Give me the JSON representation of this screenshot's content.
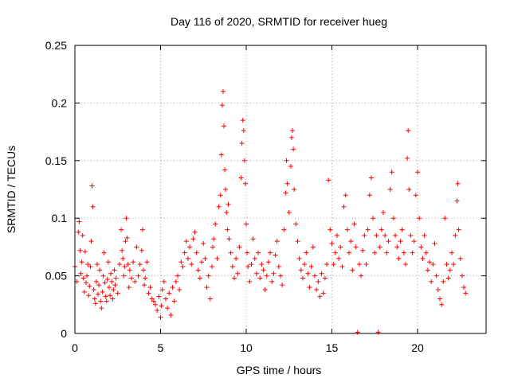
{
  "chart_data": {
    "type": "scatter",
    "title": "Day 116 of 2020, SRMTID for receiver hueg",
    "xlabel": "GPS time / hours",
    "ylabel": "SRMTID / TECUs",
    "xlim": [
      0,
      24
    ],
    "ylim": [
      0,
      0.25
    ],
    "x_ticks": [
      0,
      5,
      10,
      15,
      20
    ],
    "x_tick_labels": [
      "0",
      "5",
      "10",
      "15",
      "20"
    ],
    "y_ticks": [
      0,
      0.05,
      0.1,
      0.15,
      0.2,
      0.25
    ],
    "y_tick_labels": [
      "0",
      "0.05",
      "0.1",
      "0.15",
      "0.2",
      "0.25"
    ],
    "grid": true,
    "marker": "+",
    "color": "#ff0000",
    "series": [
      {
        "name": "SRMTID",
        "points": [
          [
            0.0,
            0.058
          ],
          [
            0.1,
            0.045
          ],
          [
            0.2,
            0.088
          ],
          [
            0.25,
            0.097
          ],
          [
            0.3,
            0.072
          ],
          [
            0.35,
            0.052
          ],
          [
            0.4,
            0.062
          ],
          [
            0.45,
            0.085
          ],
          [
            0.5,
            0.048
          ],
          [
            0.55,
            0.036
          ],
          [
            0.6,
            0.071
          ],
          [
            0.65,
            0.044
          ],
          [
            0.7,
            0.05
          ],
          [
            0.75,
            0.06
          ],
          [
            0.8,
            0.033
          ],
          [
            0.85,
            0.041
          ],
          [
            0.9,
            0.058
          ],
          [
            0.95,
            0.08
          ],
          [
            1.0,
            0.128
          ],
          [
            1.05,
            0.11
          ],
          [
            1.1,
            0.038
          ],
          [
            1.15,
            0.03
          ],
          [
            1.2,
            0.026
          ],
          [
            1.25,
            0.045
          ],
          [
            1.3,
            0.06
          ],
          [
            1.35,
            0.034
          ],
          [
            1.4,
            0.042
          ],
          [
            1.45,
            0.055
          ],
          [
            1.5,
            0.028
          ],
          [
            1.55,
            0.022
          ],
          [
            1.6,
            0.036
          ],
          [
            1.65,
            0.05
          ],
          [
            1.7,
            0.07
          ],
          [
            1.75,
            0.044
          ],
          [
            1.8,
            0.032
          ],
          [
            1.85,
            0.028
          ],
          [
            1.9,
            0.047
          ],
          [
            1.95,
            0.062
          ],
          [
            2.0,
            0.04
          ],
          [
            2.05,
            0.033
          ],
          [
            2.1,
            0.052
          ],
          [
            2.15,
            0.045
          ],
          [
            2.2,
            0.03
          ],
          [
            2.25,
            0.038
          ],
          [
            2.3,
            0.055
          ],
          [
            2.35,
            0.042
          ],
          [
            2.4,
            0.048
          ],
          [
            2.5,
            0.035
          ],
          [
            2.6,
            0.06
          ],
          [
            2.7,
            0.09
          ],
          [
            2.75,
            0.072
          ],
          [
            2.8,
            0.065
          ],
          [
            2.85,
            0.05
          ],
          [
            2.9,
            0.058
          ],
          [
            2.95,
            0.08
          ],
          [
            3.0,
            0.1
          ],
          [
            3.05,
            0.083
          ],
          [
            3.1,
            0.06
          ],
          [
            3.15,
            0.04
          ],
          [
            3.2,
            0.055
          ],
          [
            3.3,
            0.048
          ],
          [
            3.4,
            0.062
          ],
          [
            3.5,
            0.045
          ],
          [
            3.6,
            0.075
          ],
          [
            3.7,
            0.05
          ],
          [
            3.8,
            0.06
          ],
          [
            3.9,
            0.072
          ],
          [
            3.95,
            0.09
          ],
          [
            4.0,
            0.055
          ],
          [
            4.05,
            0.042
          ],
          [
            4.1,
            0.048
          ],
          [
            4.2,
            0.062
          ],
          [
            4.3,
            0.035
          ],
          [
            4.4,
            0.04
          ],
          [
            4.5,
            0.03
          ],
          [
            4.6,
            0.028
          ],
          [
            4.7,
            0.025
          ],
          [
            4.8,
            0.02
          ],
          [
            4.9,
            0.032
          ],
          [
            5.0,
            0.014
          ],
          [
            5.05,
            0.024
          ],
          [
            5.1,
            0.038
          ],
          [
            5.2,
            0.045
          ],
          [
            5.3,
            0.03
          ],
          [
            5.4,
            0.022
          ],
          [
            5.5,
            0.035
          ],
          [
            5.6,
            0.016
          ],
          [
            5.7,
            0.04
          ],
          [
            5.8,
            0.028
          ],
          [
            5.9,
            0.045
          ],
          [
            6.0,
            0.05
          ],
          [
            6.1,
            0.038
          ],
          [
            6.2,
            0.062
          ],
          [
            6.3,
            0.058
          ],
          [
            6.4,
            0.07
          ],
          [
            6.5,
            0.08
          ],
          [
            6.6,
            0.065
          ],
          [
            6.7,
            0.075
          ],
          [
            6.8,
            0.06
          ],
          [
            6.9,
            0.082
          ],
          [
            7.0,
            0.088
          ],
          [
            7.1,
            0.07
          ],
          [
            7.2,
            0.055
          ],
          [
            7.3,
            0.048
          ],
          [
            7.4,
            0.062
          ],
          [
            7.5,
            0.078
          ],
          [
            7.6,
            0.065
          ],
          [
            7.7,
            0.04
          ],
          [
            7.8,
            0.05
          ],
          [
            7.9,
            0.03
          ],
          [
            8.0,
            0.058
          ],
          [
            8.05,
            0.075
          ],
          [
            8.1,
            0.082
          ],
          [
            8.2,
            0.095
          ],
          [
            8.3,
            0.065
          ],
          [
            8.4,
            0.11
          ],
          [
            8.5,
            0.12
          ],
          [
            8.55,
            0.155
          ],
          [
            8.6,
            0.198
          ],
          [
            8.65,
            0.21
          ],
          [
            8.7,
            0.18
          ],
          [
            8.75,
            0.142
          ],
          [
            8.8,
            0.125
          ],
          [
            8.85,
            0.105
          ],
          [
            8.9,
            0.09
          ],
          [
            8.95,
            0.112
          ],
          [
            9.0,
            0.082
          ],
          [
            9.1,
            0.07
          ],
          [
            9.2,
            0.058
          ],
          [
            9.3,
            0.048
          ],
          [
            9.4,
            0.065
          ],
          [
            9.5,
            0.052
          ],
          [
            9.6,
            0.075
          ],
          [
            9.7,
            0.135
          ],
          [
            9.75,
            0.165
          ],
          [
            9.8,
            0.185
          ],
          [
            9.85,
            0.176
          ],
          [
            9.9,
            0.15
          ],
          [
            9.95,
            0.13
          ],
          [
            10.0,
            0.095
          ],
          [
            10.05,
            0.07
          ],
          [
            10.1,
            0.058
          ],
          [
            10.2,
            0.045
          ],
          [
            10.3,
            0.06
          ],
          [
            10.4,
            0.082
          ],
          [
            10.5,
            0.065
          ],
          [
            10.6,
            0.052
          ],
          [
            10.7,
            0.07
          ],
          [
            10.8,
            0.048
          ],
          [
            10.9,
            0.06
          ],
          [
            11.0,
            0.055
          ],
          [
            11.1,
            0.038
          ],
          [
            11.2,
            0.05
          ],
          [
            11.3,
            0.062
          ],
          [
            11.4,
            0.07
          ],
          [
            11.5,
            0.045
          ],
          [
            11.6,
            0.052
          ],
          [
            11.7,
            0.068
          ],
          [
            11.8,
            0.08
          ],
          [
            11.9,
            0.058
          ],
          [
            12.0,
            0.05
          ],
          [
            12.1,
            0.042
          ],
          [
            12.2,
            0.09
          ],
          [
            12.3,
            0.122
          ],
          [
            12.35,
            0.15
          ],
          [
            12.4,
            0.13
          ],
          [
            12.5,
            0.105
          ],
          [
            12.6,
            0.145
          ],
          [
            12.65,
            0.17
          ],
          [
            12.7,
            0.176
          ],
          [
            12.75,
            0.16
          ],
          [
            12.8,
            0.125
          ],
          [
            12.9,
            0.095
          ],
          [
            13.0,
            0.08
          ],
          [
            13.1,
            0.065
          ],
          [
            13.2,
            0.055
          ],
          [
            13.3,
            0.048
          ],
          [
            13.4,
            0.06
          ],
          [
            13.5,
            0.07
          ],
          [
            13.6,
            0.052
          ],
          [
            13.7,
            0.04
          ],
          [
            13.8,
            0.058
          ],
          [
            13.9,
            0.075
          ],
          [
            14.0,
            0.05
          ],
          [
            14.1,
            0.038
          ],
          [
            14.2,
            0.045
          ],
          [
            14.3,
            0.032
          ],
          [
            14.4,
            0.052
          ],
          [
            14.5,
            0.035
          ],
          [
            14.6,
            0.048
          ],
          [
            14.7,
            0.06
          ],
          [
            14.8,
            0.133
          ],
          [
            14.9,
            0.09
          ],
          [
            15.0,
            0.078
          ],
          [
            15.1,
            0.06
          ],
          [
            15.2,
            0.07
          ],
          [
            15.3,
            0.085
          ],
          [
            15.4,
            0.065
          ],
          [
            15.5,
            0.075
          ],
          [
            15.6,
            0.058
          ],
          [
            15.7,
            0.11
          ],
          [
            15.8,
            0.12
          ],
          [
            15.9,
            0.09
          ],
          [
            16.0,
            0.07
          ],
          [
            16.1,
            0.08
          ],
          [
            16.2,
            0.055
          ],
          [
            16.3,
            0.095
          ],
          [
            16.4,
            0.075
          ],
          [
            16.5,
            0.001
          ],
          [
            16.6,
            0.06
          ],
          [
            16.7,
            0.05
          ],
          [
            16.8,
            0.072
          ],
          [
            16.9,
            0.085
          ],
          [
            17.0,
            0.06
          ],
          [
            17.1,
            0.09
          ],
          [
            17.2,
            0.12
          ],
          [
            17.3,
            0.135
          ],
          [
            17.4,
            0.1
          ],
          [
            17.5,
            0.07
          ],
          [
            17.6,
            0.085
          ],
          [
            17.7,
            0.001
          ],
          [
            17.8,
            0.075
          ],
          [
            17.9,
            0.09
          ],
          [
            18.0,
            0.105
          ],
          [
            18.1,
            0.085
          ],
          [
            18.2,
            0.07
          ],
          [
            18.3,
            0.08
          ],
          [
            18.4,
            0.125
          ],
          [
            18.5,
            0.14
          ],
          [
            18.6,
            0.1
          ],
          [
            18.7,
            0.085
          ],
          [
            18.8,
            0.075
          ],
          [
            18.9,
            0.065
          ],
          [
            19.0,
            0.08
          ],
          [
            19.1,
            0.09
          ],
          [
            19.2,
            0.07
          ],
          [
            19.3,
            0.06
          ],
          [
            19.4,
            0.152
          ],
          [
            19.45,
            0.176
          ],
          [
            19.5,
            0.125
          ],
          [
            19.6,
            0.085
          ],
          [
            19.7,
            0.07
          ],
          [
            19.8,
            0.08
          ],
          [
            19.9,
            0.12
          ],
          [
            20.0,
            0.14
          ],
          [
            20.1,
            0.1
          ],
          [
            20.2,
            0.075
          ],
          [
            20.3,
            0.065
          ],
          [
            20.4,
            0.085
          ],
          [
            20.5,
            0.07
          ],
          [
            20.6,
            0.055
          ],
          [
            20.7,
            0.062
          ],
          [
            20.8,
            0.045
          ],
          [
            20.9,
            0.06
          ],
          [
            21.0,
            0.078
          ],
          [
            21.1,
            0.05
          ],
          [
            21.2,
            0.038
          ],
          [
            21.3,
            0.03
          ],
          [
            21.4,
            0.025
          ],
          [
            21.5,
            0.045
          ],
          [
            21.6,
            0.1
          ],
          [
            21.7,
            0.06
          ],
          [
            21.8,
            0.048
          ],
          [
            21.9,
            0.055
          ],
          [
            22.0,
            0.07
          ],
          [
            22.1,
            0.06
          ],
          [
            22.2,
            0.085
          ],
          [
            22.3,
            0.115
          ],
          [
            22.35,
            0.13
          ],
          [
            22.4,
            0.09
          ],
          [
            22.5,
            0.065
          ],
          [
            22.6,
            0.05
          ],
          [
            22.7,
            0.04
          ],
          [
            22.8,
            0.035
          ]
        ]
      }
    ]
  }
}
